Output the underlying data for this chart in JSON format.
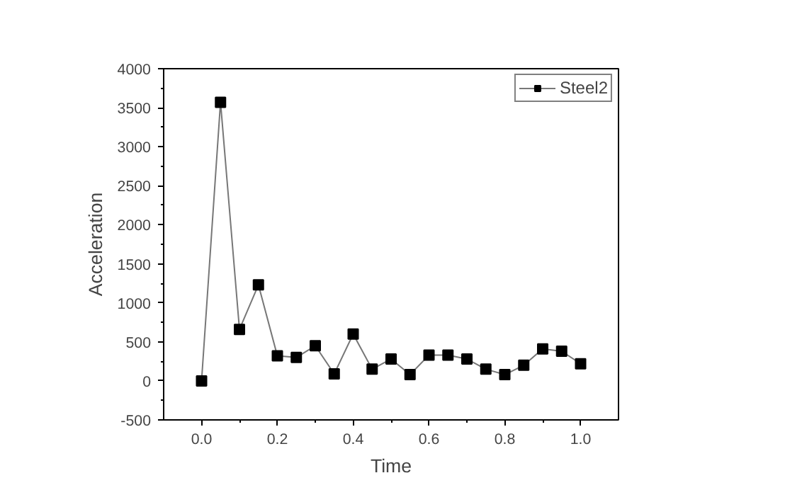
{
  "chart_data": {
    "type": "line",
    "xlabel": "Time",
    "ylabel": "Acceleration",
    "x": [
      0,
      0.05,
      0.1,
      0.15,
      0.2,
      0.25,
      0.3,
      0.35,
      0.4,
      0.45,
      0.5,
      0.55,
      0.6,
      0.65,
      0.7,
      0.75,
      0.8,
      0.85,
      0.9,
      0.95,
      1.0
    ],
    "series": [
      {
        "name": "Steel2",
        "color": "#000000",
        "values": [
          0,
          3570,
          660,
          1230,
          320,
          300,
          450,
          90,
          600,
          150,
          280,
          80,
          330,
          330,
          280,
          150,
          80,
          200,
          410,
          380,
          220
        ]
      }
    ],
    "xlim": [
      -0.1,
      1.1
    ],
    "xticks": [
      {
        "value": 0,
        "label": "0.0"
      },
      0.2,
      0.4,
      0.6,
      0.8,
      {
        "value": 1,
        "label": "1.0"
      }
    ],
    "ylim": [
      -500,
      4000
    ],
    "yticks": [
      -500,
      0,
      500,
      1000,
      1500,
      2000,
      2500,
      3000,
      3500,
      4000
    ],
    "marker": "square",
    "line_style": "solid",
    "grid": false,
    "legend": "top right"
  }
}
